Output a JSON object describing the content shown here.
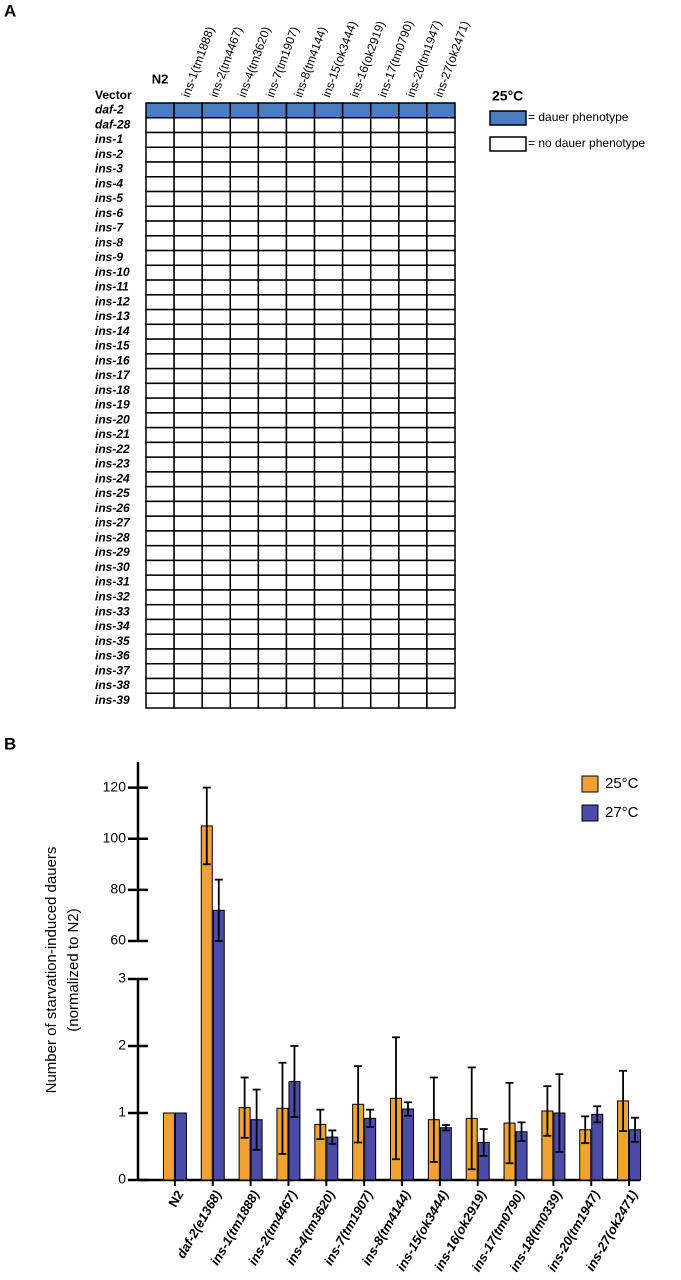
{
  "panel_a": {
    "label": "A",
    "columns": [
      "N2",
      "ins-1(tm1888)",
      "ins-2(tm4467)",
      "ins-4(tm3620)",
      "ins-7(tm1907)",
      "ins-8(tm4144)",
      "ins-15(ok3444)",
      "ins-16(ok2919)",
      "ins-17(tm0790)",
      "ins-20(tm1947)",
      "ins-27(ok2471)"
    ],
    "rows": [
      "Vector",
      "daf-2",
      "daf-28",
      "ins-1",
      "ins-2",
      "ins-3",
      "ins-4",
      "ins-5",
      "ins-6",
      "ins-7",
      "ins-8",
      "ins-9",
      "ins-10",
      "ins-11",
      "ins-12",
      "ins-13",
      "ins-14",
      "ins-15",
      "ins-16",
      "ins-17",
      "ins-18",
      "ins-19",
      "ins-20",
      "ins-21",
      "ins-22",
      "ins-23",
      "ins-24",
      "ins-25",
      "ins-26",
      "ins-27",
      "ins-28",
      "ins-29",
      "ins-30",
      "ins-31",
      "ins-32",
      "ins-33",
      "ins-34",
      "ins-35",
      "ins-36",
      "ins-37",
      "ins-38",
      "ins-39"
    ],
    "dauer": [
      null,
      true,
      false,
      false,
      false,
      false,
      false,
      false,
      false,
      false,
      false,
      false,
      false,
      false,
      false,
      false,
      false,
      false,
      false,
      false,
      false,
      false,
      false,
      false,
      false,
      false,
      false,
      false,
      false,
      false,
      false,
      false,
      false,
      false,
      false,
      false,
      false,
      false,
      false,
      false,
      false,
      false
    ],
    "legend": {
      "title": "25°C",
      "items": [
        {
          "label": "= dauer phenotype",
          "color": "#4a7cc0"
        },
        {
          "label": "= no dauer phenotype",
          "color": "#ffffff"
        }
      ]
    }
  },
  "chart_data": {
    "type": "bar",
    "label": "B",
    "ylabel": [
      "Number of starvation-induced dauers",
      "(normalized to N2)"
    ],
    "categories": [
      "N2",
      "daf-2(e1368)",
      "ins-1(tm1888)",
      "ins-2(tm4467)",
      "ins-4(tm3620)",
      "ins-7(tm1907)",
      "ins-8(tm4144)",
      "ins-15(ok3444)",
      "ins-16(ok2919)",
      "ins-17(tm0790)",
      "ins-18(tm0339)",
      "ins-20(tm1947)",
      "ins-27(ok2471)"
    ],
    "series": [
      {
        "name": "25°C",
        "color": "#f0a233",
        "values": [
          1,
          105,
          1.08,
          1.07,
          0.83,
          1.13,
          1.22,
          0.9,
          0.92,
          0.85,
          1.03,
          0.75,
          1.18
        ],
        "errors": [
          0,
          15,
          0.45,
          0.68,
          0.22,
          0.57,
          0.91,
          0.63,
          0.76,
          0.6,
          0.37,
          0.2,
          0.45
        ]
      },
      {
        "name": "27°C",
        "color": "#4b4ba8",
        "values": [
          1,
          72,
          0.9,
          1.47,
          0.64,
          0.92,
          1.06,
          0.78,
          0.56,
          0.72,
          1.0,
          0.98,
          0.75
        ],
        "errors": [
          0,
          12,
          0.45,
          0.53,
          0.1,
          0.13,
          0.1,
          0.04,
          0.2,
          0.14,
          0.58,
          0.12,
          0.18
        ]
      }
    ],
    "ylim": [
      0,
      130
    ],
    "ybreak": [
      3,
      60
    ],
    "yticks": [
      0,
      1,
      2,
      3,
      60,
      80,
      100,
      120
    ],
    "legend": "upper right"
  }
}
